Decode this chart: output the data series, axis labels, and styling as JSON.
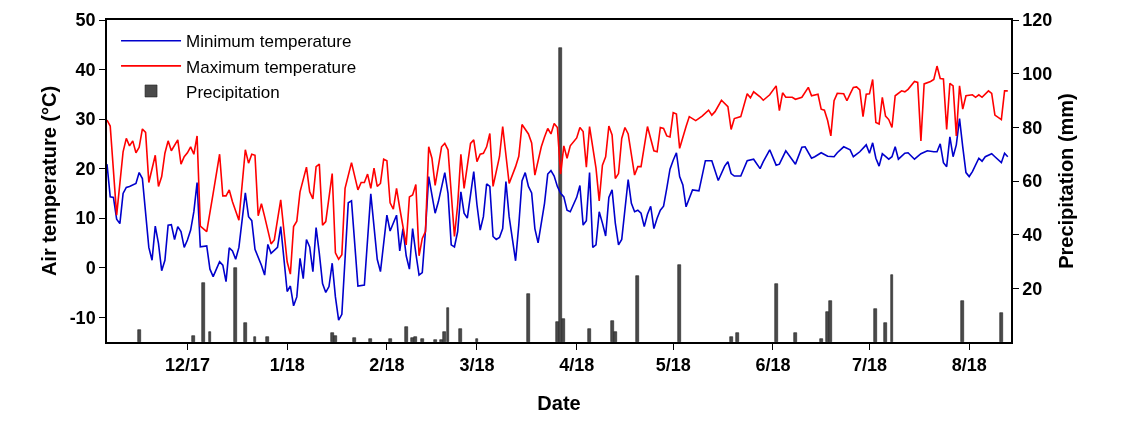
{
  "chart_data": {
    "type": "line",
    "xlabel": "Date",
    "ylabel": "Air temperature (°C)",
    "y2label": "Precipitation (mm)",
    "legend": "top left",
    "xlim": [
      "2017-11-06",
      "2018-08-14"
    ],
    "xticks": [
      {
        "value": "2017-12-01",
        "label": "12/17"
      },
      {
        "value": "2018-01-01",
        "label": "1/18"
      },
      {
        "value": "2018-02-01",
        "label": "2/18"
      },
      {
        "value": "2018-03-01",
        "label": "3/18"
      },
      {
        "value": "2018-04-01",
        "label": "4/18"
      },
      {
        "value": "2018-05-01",
        "label": "5/18"
      },
      {
        "value": "2018-06-01",
        "label": "6/18"
      },
      {
        "value": "2018-07-01",
        "label": "7/18"
      },
      {
        "value": "2018-08-01",
        "label": "8/18"
      }
    ],
    "ylim": [
      -15,
      50
    ],
    "yticks": [
      -10,
      0,
      10,
      20,
      30,
      40,
      50
    ],
    "y2lim": [
      0,
      120
    ],
    "y2ticks": [
      20,
      40,
      60,
      80,
      100,
      120
    ],
    "series": [
      {
        "name": "Minimum temperature",
        "color": "#0000cc",
        "x": [
          "2017-11-06",
          "2017-11-07",
          "2017-11-08",
          "2017-11-09",
          "2017-11-10",
          "2017-11-11",
          "2017-11-12",
          "2017-11-13",
          "2017-11-15",
          "2017-11-16",
          "2017-11-17",
          "2017-11-19",
          "2017-11-20",
          "2017-11-21",
          "2017-11-22",
          "2017-11-23",
          "2017-11-24",
          "2017-11-25",
          "2017-11-26",
          "2017-11-27",
          "2017-11-28",
          "2017-11-29",
          "2017-11-30",
          "2017-12-01",
          "2017-12-02",
          "2017-12-03",
          "2017-12-04",
          "2017-12-05",
          "2017-12-07",
          "2017-12-08",
          "2017-12-09",
          "2017-12-11",
          "2017-12-12",
          "2017-12-13",
          "2017-12-14",
          "2017-12-15",
          "2017-12-16",
          "2017-12-17",
          "2017-12-19",
          "2017-12-20",
          "2017-12-21",
          "2017-12-22",
          "2017-12-24",
          "2017-12-25",
          "2017-12-26",
          "2017-12-27",
          "2017-12-29",
          "2017-12-30",
          "2018-01-01",
          "2018-01-02",
          "2018-01-03",
          "2018-01-04",
          "2018-01-05",
          "2018-01-06",
          "2018-01-07",
          "2018-01-08",
          "2018-01-09",
          "2018-01-10",
          "2018-01-11",
          "2018-01-12",
          "2018-01-13",
          "2018-01-14",
          "2018-01-15",
          "2018-01-16",
          "2018-01-17",
          "2018-01-18",
          "2018-01-20",
          "2018-01-21",
          "2018-01-23",
          "2018-01-25",
          "2018-01-27",
          "2018-01-29",
          "2018-01-30",
          "2018-02-01",
          "2018-02-02",
          "2018-02-04",
          "2018-02-05",
          "2018-02-06",
          "2018-02-07",
          "2018-02-08",
          "2018-02-09",
          "2018-02-10",
          "2018-02-11",
          "2018-02-12",
          "2018-02-13",
          "2018-02-14",
          "2018-02-16",
          "2018-02-17",
          "2018-02-19",
          "2018-02-20",
          "2018-02-21",
          "2018-02-22",
          "2018-02-23",
          "2018-02-24",
          "2018-02-25",
          "2018-02-26",
          "2018-02-28",
          "2018-03-01",
          "2018-03-02",
          "2018-03-03",
          "2018-03-04",
          "2018-03-05",
          "2018-03-06",
          "2018-03-07",
          "2018-03-08",
          "2018-03-09",
          "2018-03-10",
          "2018-03-11",
          "2018-03-13",
          "2018-03-14",
          "2018-03-15",
          "2018-03-16",
          "2018-03-17",
          "2018-03-18",
          "2018-03-19",
          "2018-03-20",
          "2018-03-22",
          "2018-03-23",
          "2018-03-24",
          "2018-03-25",
          "2018-03-26",
          "2018-03-27",
          "2018-03-28",
          "2018-03-29",
          "2018-03-30",
          "2018-04-01",
          "2018-04-02",
          "2018-04-03",
          "2018-04-04",
          "2018-04-05",
          "2018-04-06",
          "2018-04-07",
          "2018-04-08",
          "2018-04-09",
          "2018-04-10",
          "2018-04-11",
          "2018-04-12",
          "2018-04-13",
          "2018-04-14",
          "2018-04-15",
          "2018-04-17",
          "2018-04-18",
          "2018-04-19",
          "2018-04-20",
          "2018-04-21",
          "2018-04-22",
          "2018-04-23",
          "2018-04-24",
          "2018-04-25",
          "2018-04-26",
          "2018-04-27",
          "2018-04-28",
          "2018-04-29",
          "2018-04-30",
          "2018-05-01",
          "2018-05-02",
          "2018-05-03",
          "2018-05-04",
          "2018-05-05",
          "2018-05-07",
          "2018-05-09",
          "2018-05-11",
          "2018-05-13",
          "2018-05-15",
          "2018-05-17",
          "2018-05-18",
          "2018-05-19",
          "2018-05-20",
          "2018-05-22",
          "2018-05-24",
          "2018-05-26",
          "2018-05-28",
          "2018-05-29",
          "2018-05-31",
          "2018-06-02",
          "2018-06-03",
          "2018-06-05",
          "2018-06-08",
          "2018-06-10",
          "2018-06-11",
          "2018-06-13",
          "2018-06-14",
          "2018-06-16",
          "2018-06-18",
          "2018-06-20",
          "2018-06-21",
          "2018-06-23",
          "2018-06-25",
          "2018-06-26",
          "2018-06-28",
          "2018-06-30",
          "2018-07-01",
          "2018-07-02",
          "2018-07-03",
          "2018-07-04",
          "2018-07-05",
          "2018-07-07",
          "2018-07-08",
          "2018-07-09",
          "2018-07-10",
          "2018-07-12",
          "2018-07-13",
          "2018-07-15",
          "2018-07-17",
          "2018-07-19",
          "2018-07-21",
          "2018-07-22",
          "2018-07-23",
          "2018-07-24",
          "2018-07-25",
          "2018-07-26",
          "2018-07-27",
          "2018-07-28",
          "2018-07-29",
          "2018-07-30",
          "2018-07-31",
          "2018-08-01",
          "2018-08-02",
          "2018-08-04",
          "2018-08-05",
          "2018-08-06",
          "2018-08-08",
          "2018-08-09",
          "2018-08-11",
          "2018-08-12",
          "2018-08-13"
        ],
        "values": [
          20.9,
          14.3,
          14.2,
          9.8,
          8.9,
          15.0,
          16.2,
          16.4,
          17.0,
          19.2,
          18.0,
          4.1,
          1.5,
          8.4,
          4.9,
          -0.6,
          1.5,
          8.6,
          8.7,
          5.7,
          8.3,
          7.3,
          4.1,
          5.6,
          7.6,
          11.3,
          17.2,
          4.2,
          4.4,
          -0.3,
          -1.8,
          1.2,
          0.5,
          -2.8,
          4.0,
          3.4,
          1.7,
          4.1,
          15.1,
          10.3,
          9.5,
          3.7,
          0.5,
          -1.5,
          4.7,
          2.9,
          4.1,
          8.3,
          -4.8,
          -3.7,
          -7.7,
          -5.9,
          1.9,
          -2.2,
          5.7,
          4.2,
          -0.8,
          8.1,
          2.9,
          -3.2,
          -5.0,
          -3.8,
          0.9,
          -5.9,
          -10.6,
          -9.4,
          13.1,
          13.5,
          -3.7,
          -3.5,
          14.9,
          1.7,
          -0.8,
          10.6,
          7.4,
          10.6,
          3.4,
          7.9,
          2.4,
          -0.3,
          7.9,
          2.9,
          -1.5,
          -1.0,
          7.6,
          18.4,
          11.0,
          13.3,
          19.2,
          15.0,
          4.6,
          4.2,
          7.3,
          15.3,
          11.0,
          10.0,
          19.4,
          12.7,
          7.6,
          10.3,
          16.9,
          16.4,
          6.3,
          5.7,
          6.1,
          7.9,
          17.4,
          10.3,
          1.4,
          8.6,
          17.5,
          19.2,
          16.4,
          15.1,
          7.9,
          5.0,
          13.0,
          18.9,
          19.6,
          18.5,
          16.4,
          15.0,
          14.3,
          11.6,
          11.3,
          14.2,
          16.6,
          8.6,
          9.5,
          19.2,
          4.1,
          4.6,
          11.3,
          9.0,
          6.4,
          14.2,
          15.7,
          9.0,
          4.6,
          5.7,
          17.8,
          13.0,
          11.3,
          11.6,
          11.0,
          8.3,
          10.8,
          12.4,
          7.9,
          10.0,
          11.6,
          12.4,
          16.0,
          19.9,
          21.7,
          23.2,
          18.4,
          16.7,
          12.3,
          15.7,
          15.5,
          21.6,
          21.6,
          17.6,
          20.5,
          21.4,
          19.0,
          18.5,
          18.5,
          21.6,
          21.9,
          20.0,
          21.4,
          23.8,
          20.7,
          20.9,
          23.6,
          20.9,
          24.3,
          24.4,
          22.1,
          22.4,
          23.2,
          22.5,
          22.4,
          23.2,
          24.4,
          23.8,
          22.4,
          23.4,
          24.8,
          23.1,
          25.2,
          22.1,
          20.5,
          23.0,
          21.9,
          22.4,
          24.4,
          21.9,
          23.1,
          23.2,
          21.9,
          23.0,
          23.6,
          23.4,
          23.4,
          25.0,
          21.2,
          20.4,
          26.4,
          22.4,
          24.8,
          30.1,
          24.4,
          19.2,
          18.4,
          19.4,
          22.1,
          21.5,
          22.4,
          23.0,
          22.4,
          21.2,
          23.1,
          22.4
        ]
      },
      {
        "name": "Maximum temperature",
        "color": "#ff0000",
        "x": [
          "2017-11-06",
          "2017-11-07",
          "2017-11-09",
          "2017-11-11",
          "2017-11-12",
          "2017-11-13",
          "2017-11-14",
          "2017-11-15",
          "2017-11-16",
          "2017-11-17",
          "2017-11-18",
          "2017-11-19",
          "2017-11-21",
          "2017-11-22",
          "2017-11-23",
          "2017-11-24",
          "2017-11-25",
          "2017-11-26",
          "2017-11-28",
          "2017-11-29",
          "2017-11-30",
          "2017-12-01",
          "2017-12-02",
          "2017-12-03",
          "2017-12-04",
          "2017-12-05",
          "2017-12-07",
          "2017-12-09",
          "2017-12-11",
          "2017-12-12",
          "2017-12-13",
          "2017-12-14",
          "2017-12-15",
          "2017-12-17",
          "2017-12-19",
          "2017-12-20",
          "2017-12-21",
          "2017-12-22",
          "2017-12-23",
          "2017-12-24",
          "2017-12-25",
          "2017-12-27",
          "2017-12-28",
          "2017-12-30",
          "2018-01-01",
          "2018-01-02",
          "2018-01-03",
          "2018-01-04",
          "2018-01-05",
          "2018-01-07",
          "2018-01-08",
          "2018-01-09",
          "2018-01-10",
          "2018-01-11",
          "2018-01-12",
          "2018-01-13",
          "2018-01-15",
          "2018-01-16",
          "2018-01-17",
          "2018-01-18",
          "2018-01-19",
          "2018-01-21",
          "2018-01-23",
          "2018-01-24",
          "2018-01-25",
          "2018-01-26",
          "2018-01-27",
          "2018-01-28",
          "2018-01-29",
          "2018-01-30",
          "2018-01-31",
          "2018-02-01",
          "2018-02-02",
          "2018-02-03",
          "2018-02-04",
          "2018-02-05",
          "2018-02-07",
          "2018-02-08",
          "2018-02-09",
          "2018-02-10",
          "2018-02-11",
          "2018-02-12",
          "2018-02-13",
          "2018-02-14",
          "2018-02-15",
          "2018-02-16",
          "2018-02-18",
          "2018-02-19",
          "2018-02-20",
          "2018-02-22",
          "2018-02-23",
          "2018-02-24",
          "2018-02-25",
          "2018-02-27",
          "2018-02-28",
          "2018-03-01",
          "2018-03-02",
          "2018-03-03",
          "2018-03-04",
          "2018-03-05",
          "2018-03-06",
          "2018-03-08",
          "2018-03-09",
          "2018-03-11",
          "2018-03-13",
          "2018-03-14",
          "2018-03-15",
          "2018-03-17",
          "2018-03-18",
          "2018-03-19",
          "2018-03-21",
          "2018-03-22",
          "2018-03-23",
          "2018-03-24",
          "2018-03-25",
          "2018-03-26",
          "2018-03-27",
          "2018-03-28",
          "2018-03-29",
          "2018-03-30",
          "2018-04-01",
          "2018-04-02",
          "2018-04-03",
          "2018-04-04",
          "2018-04-05",
          "2018-04-07",
          "2018-04-08",
          "2018-04-09",
          "2018-04-10",
          "2018-04-11",
          "2018-04-12",
          "2018-04-13",
          "2018-04-14",
          "2018-04-15",
          "2018-04-16",
          "2018-04-17",
          "2018-04-19",
          "2018-04-20",
          "2018-04-21",
          "2018-04-23",
          "2018-04-25",
          "2018-04-26",
          "2018-04-27",
          "2018-04-28",
          "2018-04-29",
          "2018-04-30",
          "2018-05-01",
          "2018-05-02",
          "2018-05-03",
          "2018-05-05",
          "2018-05-06",
          "2018-05-08",
          "2018-05-10",
          "2018-05-12",
          "2018-05-13",
          "2018-05-14",
          "2018-05-16",
          "2018-05-18",
          "2018-05-19",
          "2018-05-20",
          "2018-05-22",
          "2018-05-24",
          "2018-05-25",
          "2018-05-26",
          "2018-05-28",
          "2018-05-29",
          "2018-05-31",
          "2018-06-02",
          "2018-06-03",
          "2018-06-04",
          "2018-06-05",
          "2018-06-07",
          "2018-06-08",
          "2018-06-10",
          "2018-06-12",
          "2018-06-13",
          "2018-06-15",
          "2018-06-16",
          "2018-06-17",
          "2018-06-18",
          "2018-06-19",
          "2018-06-20",
          "2018-06-21",
          "2018-06-23",
          "2018-06-24",
          "2018-06-25",
          "2018-06-26",
          "2018-06-27",
          "2018-06-28",
          "2018-06-29",
          "2018-06-30",
          "2018-07-01",
          "2018-07-02",
          "2018-07-03",
          "2018-07-04",
          "2018-07-05",
          "2018-07-06",
          "2018-07-07",
          "2018-07-08",
          "2018-07-09",
          "2018-07-11",
          "2018-07-12",
          "2018-07-13",
          "2018-07-15",
          "2018-07-16",
          "2018-07-17",
          "2018-07-18",
          "2018-07-20",
          "2018-07-21",
          "2018-07-22",
          "2018-07-23",
          "2018-07-24",
          "2018-07-25",
          "2018-07-26",
          "2018-07-27",
          "2018-07-28",
          "2018-07-29",
          "2018-07-30",
          "2018-07-31",
          "2018-08-02",
          "2018-08-03",
          "2018-08-04",
          "2018-08-05",
          "2018-08-07",
          "2018-08-08",
          "2018-08-09",
          "2018-08-11",
          "2018-08-12",
          "2018-08-13"
        ],
        "values": [
          29.8,
          28.6,
          10.6,
          23.4,
          26.1,
          24.6,
          25.6,
          23.2,
          24.3,
          28.0,
          27.3,
          17.2,
          22.7,
          16.4,
          18.4,
          23.1,
          25.6,
          23.6,
          25.8,
          20.9,
          22.4,
          23.2,
          24.4,
          22.9,
          26.6,
          8.4,
          7.3,
          15.0,
          22.9,
          14.5,
          14.5,
          15.7,
          13.3,
          9.6,
          23.8,
          21.1,
          22.9,
          22.7,
          10.5,
          12.9,
          10.3,
          4.8,
          5.6,
          13.7,
          1.2,
          -1.3,
          8.3,
          9.4,
          15.3,
          20.3,
          15.3,
          13.9,
          20.4,
          20.9,
          8.6,
          9.3,
          19.0,
          3.0,
          1.7,
          2.6,
          16.0,
          21.2,
          15.7,
          17.2,
          17.2,
          18.9,
          16.0,
          20.1,
          16.4,
          17.0,
          21.9,
          21.6,
          13.1,
          11.8,
          16.0,
          12.0,
          4.6,
          14.3,
          14.7,
          16.8,
          2.4,
          5.9,
          7.3,
          24.4,
          22.1,
          16.6,
          24.4,
          25.1,
          23.8,
          6.3,
          12.7,
          22.9,
          16.0,
          25.1,
          25.8,
          21.4,
          22.9,
          23.1,
          24.4,
          27.1,
          16.4,
          22.4,
          28.5,
          17.0,
          20.4,
          22.5,
          28.9,
          27.0,
          25.2,
          18.7,
          24.4,
          26.4,
          28.1,
          27.0,
          29.1,
          28.3,
          18.9,
          24.6,
          22.1,
          24.6,
          26.2,
          28.3,
          27.5,
          20.3,
          28.5,
          20.1,
          13.5,
          20.7,
          22.4,
          28.6,
          26.8,
          18.0,
          19.0,
          26.1,
          28.3,
          27.0,
          18.7,
          20.4,
          20.4,
          28.5,
          23.6,
          23.4,
          28.3,
          28.1,
          26.6,
          26.4,
          31.3,
          31.0,
          24.1,
          28.5,
          30.5,
          29.7,
          30.6,
          31.8,
          30.8,
          31.5,
          33.8,
          32.5,
          27.9,
          30.1,
          30.5,
          35.1,
          34.3,
          35.5,
          34.5,
          33.8,
          34.9,
          36.7,
          31.7,
          35.3,
          34.4,
          34.4,
          34.0,
          34.4,
          36.4,
          34.7,
          35.0,
          32.0,
          31.8,
          29.7,
          26.6,
          33.7,
          35.2,
          35.1,
          33.7,
          35.1,
          36.4,
          36.5,
          35.9,
          30.5,
          35.0,
          35.1,
          38.0,
          29.3,
          29.0,
          34.4,
          30.6,
          29.9,
          28.3,
          34.7,
          35.7,
          35.5,
          36.0,
          37.6,
          37.4,
          25.6,
          37.1,
          37.6,
          38.0,
          40.7,
          38.2,
          38.1,
          27.9,
          37.2,
          36.7,
          26.6,
          36.7,
          32.0,
          34.7,
          34.9,
          34.4,
          34.9,
          34.4,
          35.7,
          35.2,
          30.8,
          29.9,
          35.7,
          35.7
        ]
      },
      {
        "name": "Precipitation",
        "type": "bar",
        "axis": "y2",
        "color": "#4a4a4a",
        "x": [
          "2017-11-16",
          "2017-12-03",
          "2017-12-06",
          "2017-12-08",
          "2017-12-16",
          "2017-12-19",
          "2017-12-22",
          "2017-12-26",
          "2018-01-15",
          "2018-01-16",
          "2018-01-22",
          "2018-01-27",
          "2018-02-02",
          "2018-02-07",
          "2018-02-09",
          "2018-02-10",
          "2018-02-12",
          "2018-02-16",
          "2018-02-18",
          "2018-02-19",
          "2018-02-20",
          "2018-02-24",
          "2018-03-01",
          "2018-03-17",
          "2018-03-26",
          "2018-03-27",
          "2018-03-28",
          "2018-04-05",
          "2018-04-12",
          "2018-04-13",
          "2018-04-20",
          "2018-05-03",
          "2018-05-19",
          "2018-05-21",
          "2018-06-02",
          "2018-06-08",
          "2018-06-16",
          "2018-06-18",
          "2018-06-19",
          "2018-07-03",
          "2018-07-06",
          "2018-07-08",
          "2018-07-30",
          "2018-08-11"
        ],
        "values": [
          4.5,
          2.2,
          22.1,
          3.6,
          27.5,
          7.0,
          1.7,
          1.7,
          3.5,
          2.2,
          1.4,
          1.0,
          1.0,
          5.7,
          1.4,
          1.7,
          1.0,
          0.7,
          0.7,
          3.8,
          12.6,
          4.7,
          1.0,
          17.9,
          7.6,
          109.5,
          8.5,
          4.8,
          7.9,
          3.8,
          24.6,
          28.7,
          1.7,
          3.5,
          21.6,
          3.2,
          1.0,
          11.3,
          15.4,
          12.2,
          7.2,
          25.0,
          15.4,
          10.7
        ]
      }
    ]
  }
}
